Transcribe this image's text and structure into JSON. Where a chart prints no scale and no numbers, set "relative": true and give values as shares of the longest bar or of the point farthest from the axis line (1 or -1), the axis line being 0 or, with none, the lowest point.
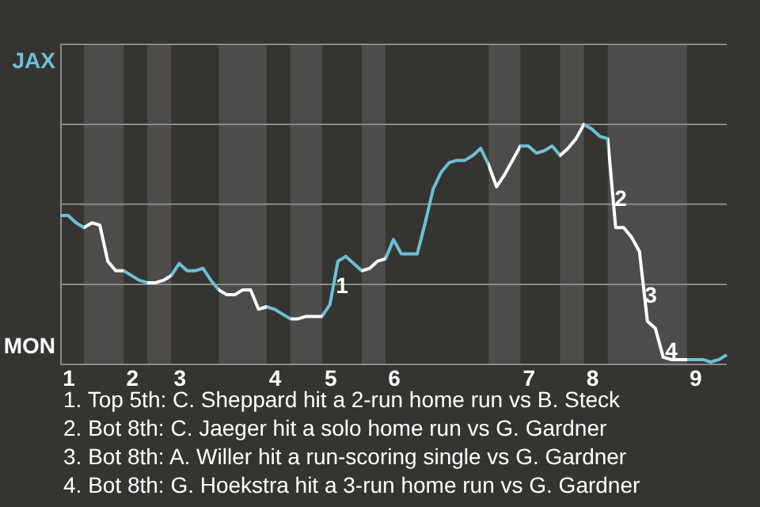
{
  "chart_data": {
    "type": "line",
    "relative": true,
    "categories": [
      null,
      "1",
      null,
      null,
      null,
      null,
      null,
      null,
      null,
      "2",
      null,
      null,
      null,
      null,
      null,
      "3",
      null,
      null,
      null,
      null,
      null,
      null,
      null,
      null,
      null,
      null,
      null,
      "4",
      null,
      null,
      null,
      null,
      null,
      null,
      "5",
      null,
      null,
      null,
      null,
      null,
      null,
      null,
      "6",
      null,
      null,
      null,
      null,
      null,
      null,
      null,
      null,
      null,
      null,
      null,
      null,
      null,
      null,
      null,
      null,
      "7",
      null,
      null,
      null,
      null,
      null,
      null,
      null,
      "8",
      null,
      null,
      null,
      null,
      null,
      null,
      null,
      null,
      null,
      null,
      null,
      null,
      "9",
      null,
      null,
      null,
      null
    ],
    "series": [
      {
        "values": [
          0.62,
          0.62,
          0.59,
          0.57,
          0.59,
          0.58,
          0.43,
          0.39,
          0.39,
          0.37,
          0.35,
          0.34,
          0.34,
          0.35,
          0.37,
          0.42,
          0.39,
          0.39,
          0.4,
          0.35,
          0.31,
          0.29,
          0.29,
          0.31,
          0.31,
          0.23,
          0.24,
          0.23,
          0.21,
          0.19,
          0.19,
          0.2,
          0.2,
          0.2,
          0.25,
          0.43,
          0.45,
          0.42,
          0.39,
          0.4,
          0.43,
          0.44,
          0.52,
          0.46,
          0.46,
          0.46,
          0.59,
          0.73,
          0.8,
          0.84,
          0.85,
          0.85,
          0.87,
          0.9,
          0.83,
          0.74,
          0.79,
          0.85,
          0.91,
          0.91,
          0.88,
          0.89,
          0.91,
          0.87,
          0.9,
          0.94,
          1,
          0.98,
          0.95,
          0.94,
          0.57,
          0.57,
          0.53,
          0.47,
          0.18,
          0.15,
          0.03,
          0.02,
          0.02,
          0.02,
          0.02,
          0.02,
          0.01,
          0.02,
          0.04
        ],
        "colors": [
          "#6cc0d8",
          "#6cc0d8",
          "#6cc0d8",
          "#ffffff",
          "#ffffff",
          "#ffffff",
          "#ffffff",
          "#ffffff",
          "#6cc0d8",
          "#6cc0d8",
          "#6cc0d8",
          "#ffffff",
          "#ffffff",
          "#ffffff",
          "#6cc0d8",
          "#6cc0d8",
          "#6cc0d8",
          "#6cc0d8",
          "#6cc0d8",
          "#6cc0d8",
          "#ffffff",
          "#ffffff",
          "#ffffff",
          "#ffffff",
          "#ffffff",
          "#ffffff",
          "#6cc0d8",
          "#6cc0d8",
          "#6cc0d8",
          "#ffffff",
          "#ffffff",
          "#ffffff",
          "#ffffff",
          "#6cc0d8",
          "#6cc0d8",
          "#6cc0d8",
          "#6cc0d8",
          "#6cc0d8",
          "#ffffff",
          "#ffffff",
          "#ffffff",
          "#6cc0d8",
          "#6cc0d8",
          "#6cc0d8",
          "#6cc0d8",
          "#6cc0d8",
          "#6cc0d8",
          "#6cc0d8",
          "#6cc0d8",
          "#6cc0d8",
          "#6cc0d8",
          "#6cc0d8",
          "#6cc0d8",
          "#6cc0d8",
          "#ffffff",
          "#ffffff",
          "#ffffff",
          "#ffffff",
          "#6cc0d8",
          "#6cc0d8",
          "#6cc0d8",
          "#6cc0d8",
          "#6cc0d8",
          "#ffffff",
          "#ffffff",
          "#ffffff",
          "#6cc0d8",
          "#6cc0d8",
          "#6cc0d8",
          "#ffffff",
          "#ffffff",
          "#ffffff",
          "#ffffff",
          "#ffffff",
          "#ffffff",
          "#ffffff",
          "#ffffff",
          "#ffffff",
          "#ffffff",
          "#6cc0d8",
          "#6cc0d8",
          "#6cc0d8",
          "#6cc0d8",
          "#6cc0d8",
          "#6cc0d8"
        ]
      }
    ],
    "line_style": "solid",
    "ref_lines": [
      {
        "axis": "y",
        "value": 0,
        "label": "MON",
        "color": "#8a8a8a"
      },
      {
        "axis": "y",
        "value": 0.333,
        "color": "#8a8a8a"
      },
      {
        "axis": "y",
        "value": 0.667,
        "color": "#8a8a8a"
      },
      {
        "axis": "y",
        "value": 1,
        "color": "#8a8a8a"
      },
      {
        "axis": "y",
        "value": 1.333,
        "label": "JAX",
        "color": "#8a8a8a"
      }
    ],
    "annotations": [
      "1",
      "2",
      "3",
      "4",
      "1. Top 5th: C. Sheppard hit a 2-run home run vs B. Steck",
      "2. Bot 8th: C. Jaeger hit a solo home run vs G. Gardner",
      "3. Bot 8th: A. Willer hit a run-scoring single vs G. Gardner",
      "4. Bot 8th: G. Hoekstra hit a 3-run home run vs G. Gardner"
    ]
  }
}
